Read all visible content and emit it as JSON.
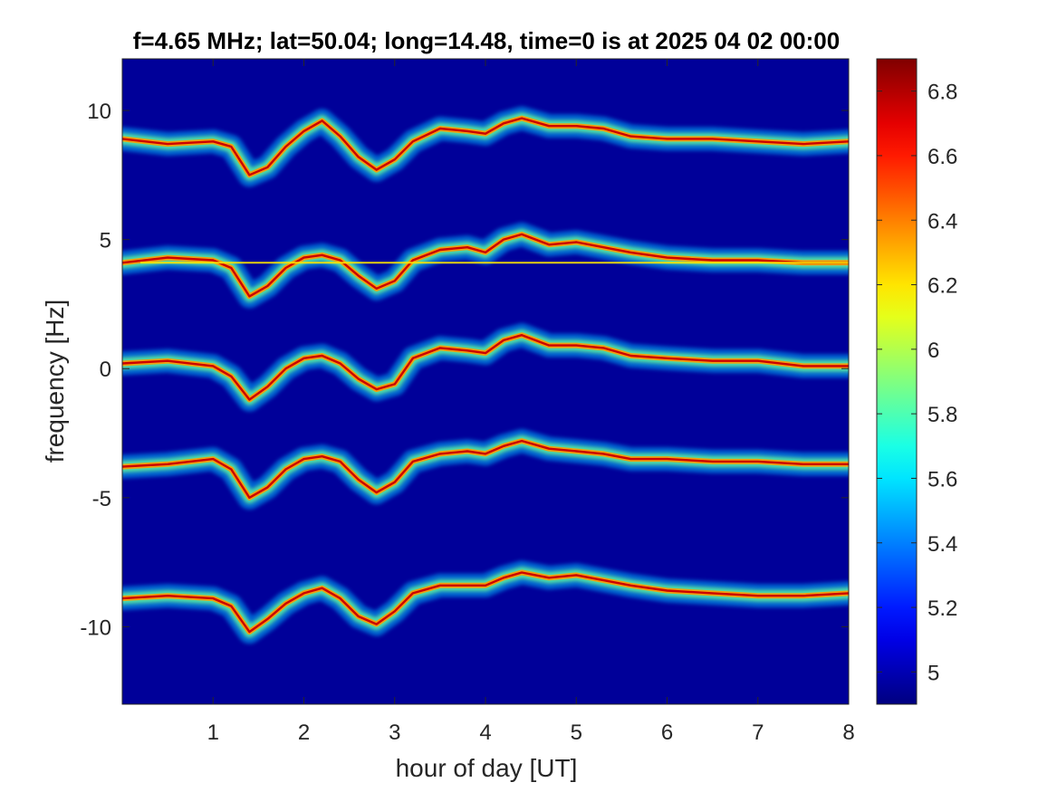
{
  "chart_data": {
    "type": "heatmap",
    "title": "f=4.65 MHz;  lat=50.04; long=14.48, time=0 is at 2025 04 02 00:00",
    "xlabel": "hour of day [UT]",
    "ylabel": "frequency [Hz]",
    "xlim": [
      0,
      8
    ],
    "ylim": [
      -13,
      12
    ],
    "x_ticks": [
      1,
      2,
      3,
      4,
      5,
      6,
      7,
      8
    ],
    "y_ticks": [
      -10,
      -5,
      0,
      5,
      10
    ],
    "colorbar": {
      "colormap": "jet",
      "clim": [
        4.9,
        6.9
      ],
      "ticks": [
        5,
        5.2,
        5.4,
        5.6,
        5.8,
        6,
        6.2,
        6.4,
        6.6,
        6.8
      ]
    },
    "background_value": 4.95,
    "constant_line": {
      "frequency": 4.1,
      "x_start": 0.2,
      "x_end": 8
    },
    "traces": [
      {
        "name": "",
        "x": [
          0,
          0.5,
          1,
          1.2,
          1.4,
          1.6,
          1.8,
          2,
          2.2,
          2.4,
          2.6,
          2.8,
          3,
          3.2,
          3.5,
          3.8,
          4,
          4.2,
          4.4,
          4.7,
          5,
          5.3,
          5.6,
          6,
          6.5,
          7,
          7.5,
          8
        ],
        "y": [
          8.9,
          8.7,
          8.8,
          8.6,
          7.5,
          7.8,
          8.6,
          9.2,
          9.6,
          9.0,
          8.2,
          7.7,
          8.1,
          8.8,
          9.3,
          9.2,
          9.1,
          9.5,
          9.7,
          9.4,
          9.4,
          9.3,
          9.0,
          8.9,
          8.9,
          8.8,
          8.7,
          8.8
        ]
      },
      {
        "name": "",
        "x": [
          0,
          0.5,
          1,
          1.2,
          1.4,
          1.6,
          1.8,
          2,
          2.2,
          2.4,
          2.6,
          2.8,
          3,
          3.2,
          3.5,
          3.8,
          4,
          4.2,
          4.4,
          4.7,
          5,
          5.3,
          5.6,
          6,
          6.5,
          7,
          7.5,
          8
        ],
        "y": [
          4.1,
          4.3,
          4.2,
          3.9,
          2.8,
          3.2,
          3.9,
          4.3,
          4.4,
          4.2,
          3.6,
          3.1,
          3.4,
          4.2,
          4.6,
          4.7,
          4.5,
          5.0,
          5.2,
          4.8,
          4.9,
          4.7,
          4.5,
          4.3,
          4.2,
          4.2,
          4.1,
          4.1
        ]
      },
      {
        "name": "",
        "x": [
          0,
          0.5,
          1,
          1.2,
          1.4,
          1.6,
          1.8,
          2,
          2.2,
          2.4,
          2.6,
          2.8,
          3,
          3.2,
          3.5,
          3.8,
          4,
          4.2,
          4.4,
          4.7,
          5,
          5.3,
          5.6,
          6,
          6.5,
          7,
          7.5,
          8
        ],
        "y": [
          0.2,
          0.3,
          0.1,
          -0.3,
          -1.2,
          -0.7,
          0.0,
          0.4,
          0.5,
          0.2,
          -0.4,
          -0.8,
          -0.6,
          0.4,
          0.8,
          0.7,
          0.6,
          1.1,
          1.3,
          0.9,
          0.9,
          0.8,
          0.5,
          0.4,
          0.3,
          0.3,
          0.1,
          0.1
        ]
      },
      {
        "name": "",
        "x": [
          0,
          0.5,
          1,
          1.2,
          1.4,
          1.6,
          1.8,
          2,
          2.2,
          2.4,
          2.6,
          2.8,
          3,
          3.2,
          3.5,
          3.8,
          4,
          4.2,
          4.4,
          4.7,
          5,
          5.3,
          5.6,
          6,
          6.5,
          7,
          7.5,
          8
        ],
        "y": [
          -3.8,
          -3.7,
          -3.5,
          -3.9,
          -5.0,
          -4.6,
          -3.9,
          -3.5,
          -3.4,
          -3.6,
          -4.3,
          -4.8,
          -4.4,
          -3.6,
          -3.3,
          -3.2,
          -3.3,
          -3.0,
          -2.8,
          -3.1,
          -3.2,
          -3.3,
          -3.5,
          -3.5,
          -3.6,
          -3.6,
          -3.7,
          -3.7
        ]
      },
      {
        "name": "",
        "x": [
          0,
          0.5,
          1,
          1.2,
          1.4,
          1.6,
          1.8,
          2,
          2.2,
          2.4,
          2.6,
          2.8,
          3,
          3.2,
          3.5,
          3.8,
          4,
          4.2,
          4.4,
          4.7,
          5,
          5.3,
          5.6,
          6,
          6.5,
          7,
          7.5,
          8
        ],
        "y": [
          -8.9,
          -8.8,
          -8.9,
          -9.2,
          -10.2,
          -9.7,
          -9.1,
          -8.7,
          -8.5,
          -8.9,
          -9.6,
          -9.9,
          -9.4,
          -8.7,
          -8.4,
          -8.4,
          -8.4,
          -8.1,
          -7.9,
          -8.1,
          -8.0,
          -8.2,
          -8.4,
          -8.6,
          -8.7,
          -8.8,
          -8.8,
          -8.7
        ]
      }
    ]
  },
  "colors": {
    "plot_background": "#00008f",
    "axis_text": "#262626",
    "title_text": "#000000"
  }
}
